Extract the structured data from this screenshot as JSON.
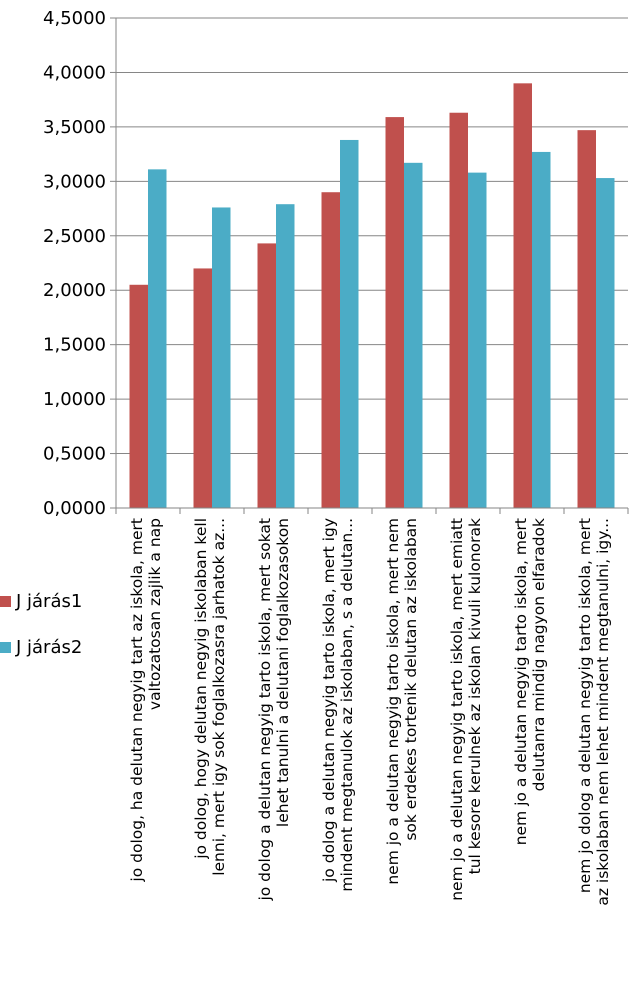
{
  "chart_data": {
    "type": "bar",
    "title": "",
    "xlabel": "",
    "ylabel": "",
    "ylim": [
      0,
      4.5
    ],
    "yticks": [
      "0,0000",
      "0,5000",
      "1,0000",
      "1,5000",
      "2,0000",
      "2,5000",
      "3,0000",
      "3,5000",
      "4,0000",
      "4,5000"
    ],
    "grid": true,
    "legend": "left",
    "categories": [
      [
        "jo dolog, ha delutan negyig tart az iskola, mert",
        "valtozatosan zajlik a nap"
      ],
      [
        "jo dolog, hogy delutan negyig iskolaban kell",
        "lenni, mert igy sok foglalkozasra jarhatok az..."
      ],
      [
        "jo dolog a delutan negyig tarto iskola, mert sokat",
        "lehet tanulni a delutani foglalkozasokon"
      ],
      [
        "jo dolog a delutan negyig tarto iskola, mert igy",
        "mindent megtanulok az iskolaban, s a delutan..."
      ],
      [
        "nem jo a delutan negyig tarto iskola, mert nem",
        "sok erdekes tortenik delutan az iskolaban"
      ],
      [
        "nem jo a delutan negyig tarto iskola, mert emiatt",
        "tul kesore kerulnek az iskolan kivuli kulonorak"
      ],
      [
        "nem jo a delutan negyig tarto iskola, mert",
        "delutanra mindig nagyon elfaradok"
      ],
      [
        "nem jo dolog a delutan negyig tarto iskola, mert",
        "az iskolaban nem lehet mindent megtanulni, igy..."
      ]
    ],
    "series": [
      {
        "name": "J járás1",
        "color": "#c0504d",
        "values": [
          2.05,
          2.2,
          2.43,
          2.9,
          3.59,
          3.63,
          3.9,
          3.47
        ]
      },
      {
        "name": "J járás2",
        "color": "#4bacc6",
        "values": [
          3.11,
          2.76,
          2.79,
          3.38,
          3.17,
          3.08,
          3.27,
          3.03
        ]
      }
    ]
  }
}
